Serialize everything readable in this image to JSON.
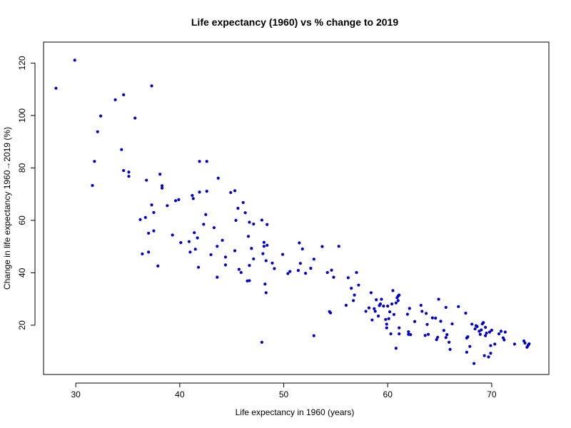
{
  "chart_data": {
    "type": "scatter",
    "title": "Life expectancy (1960) vs % change to 2019",
    "xlabel": "Life expectancy in 1960 (years)",
    "ylabel": "Change in life expectancy 1960→2019 (%)",
    "xlim": [
      26.9,
      75.5
    ],
    "ylim": [
      1.2,
      128
    ],
    "xticks": [
      "30",
      "40",
      "50",
      "60",
      "70"
    ],
    "yticks": [
      "20",
      "40",
      "60",
      "80",
      "100",
      "120"
    ],
    "grid": false,
    "marker_color": "#0000CD",
    "points": [
      [
        28.1,
        110.4
      ],
      [
        29.9,
        121.1
      ],
      [
        31.6,
        73.3
      ],
      [
        31.8,
        82.5
      ],
      [
        32.1,
        93.8
      ],
      [
        32.4,
        99.8
      ],
      [
        33.8,
        106.0
      ],
      [
        34.4,
        87.0
      ],
      [
        34.6,
        107.9
      ],
      [
        34.6,
        79.0
      ],
      [
        35.1,
        76.8
      ],
      [
        35.1,
        78.4
      ],
      [
        35.7,
        99.0
      ],
      [
        37.3,
        111.3
      ],
      [
        36.2,
        60.3
      ],
      [
        36.4,
        47.2
      ],
      [
        36.7,
        61.1
      ],
      [
        36.8,
        75.3
      ],
      [
        37.0,
        55.1
      ],
      [
        37.0,
        47.9
      ],
      [
        37.3,
        65.9
      ],
      [
        37.5,
        56.0
      ],
      [
        37.5,
        63.0
      ],
      [
        37.9,
        42.6
      ],
      [
        38.1,
        77.6
      ],
      [
        38.3,
        73.2
      ],
      [
        38.3,
        72.3
      ],
      [
        38.8,
        65.6
      ],
      [
        39.3,
        54.4
      ],
      [
        39.6,
        67.5
      ],
      [
        39.9,
        67.9
      ],
      [
        40.1,
        51.5
      ],
      [
        40.9,
        51.9
      ],
      [
        41.0,
        47.9
      ],
      [
        41.2,
        69.5
      ],
      [
        41.3,
        68.3
      ],
      [
        41.4,
        55.3
      ],
      [
        41.5,
        49.0
      ],
      [
        41.7,
        53.3
      ],
      [
        41.8,
        42.1
      ],
      [
        41.9,
        70.8
      ],
      [
        41.9,
        82.5
      ],
      [
        42.3,
        58.5
      ],
      [
        42.5,
        62.2
      ],
      [
        42.6,
        71.1
      ],
      [
        42.6,
        82.5
      ],
      [
        43.0,
        46.9
      ],
      [
        43.3,
        57.2
      ],
      [
        43.6,
        50.1
      ],
      [
        43.6,
        38.3
      ],
      [
        43.7,
        76.1
      ],
      [
        44.1,
        52.4
      ],
      [
        44.4,
        43.0
      ],
      [
        44.4,
        46.0
      ],
      [
        44.9,
        70.6
      ],
      [
        45.3,
        71.3
      ],
      [
        45.3,
        48.4
      ],
      [
        45.4,
        60.0
      ],
      [
        45.6,
        64.6
      ],
      [
        45.7,
        41.3
      ],
      [
        45.9,
        40.1
      ],
      [
        46.1,
        66.8
      ],
      [
        46.3,
        62.9
      ],
      [
        46.5,
        36.9
      ],
      [
        46.6,
        53.9
      ],
      [
        46.7,
        59.3
      ],
      [
        46.7,
        42.8
      ],
      [
        46.7,
        37.0
      ],
      [
        46.9,
        49.3
      ],
      [
        47.1,
        45.3
      ],
      [
        47.1,
        58.6
      ],
      [
        47.9,
        13.5
      ],
      [
        47.9,
        60.1
      ],
      [
        48.0,
        47.3
      ],
      [
        48.1,
        51.6
      ],
      [
        48.1,
        50.1
      ],
      [
        48.2,
        35.7
      ],
      [
        48.3,
        32.4
      ],
      [
        48.3,
        44.6
      ],
      [
        48.4,
        58.4
      ],
      [
        48.4,
        50.5
      ],
      [
        48.9,
        43.7
      ],
      [
        49.1,
        41.6
      ],
      [
        49.9,
        47.0
      ],
      [
        50.4,
        39.7
      ],
      [
        50.6,
        40.5
      ],
      [
        51.4,
        40.9
      ],
      [
        51.5,
        51.4
      ],
      [
        51.6,
        43.6
      ],
      [
        51.8,
        49.1
      ],
      [
        52.1,
        39.8
      ],
      [
        52.6,
        41.7
      ],
      [
        52.9,
        45.2
      ],
      [
        52.9,
        16.0
      ],
      [
        53.7,
        50.0
      ],
      [
        54.2,
        40.1
      ],
      [
        54.4,
        25.2
      ],
      [
        54.5,
        24.7
      ],
      [
        54.6,
        41.0
      ],
      [
        54.8,
        38.3
      ],
      [
        55.3,
        50.1
      ],
      [
        56.0,
        27.6
      ],
      [
        56.2,
        38.1
      ],
      [
        56.5,
        34.1
      ],
      [
        56.7,
        29.4
      ],
      [
        56.8,
        31.5
      ],
      [
        57.0,
        40.1
      ],
      [
        57.2,
        35.3
      ],
      [
        57.9,
        25.3
      ],
      [
        58.2,
        26.6
      ],
      [
        58.4,
        32.4
      ],
      [
        58.5,
        22.0
      ],
      [
        58.7,
        26.3
      ],
      [
        58.8,
        25.3
      ],
      [
        58.9,
        29.7
      ],
      [
        59.1,
        23.5
      ],
      [
        59.2,
        27.5
      ],
      [
        59.3,
        28.1
      ],
      [
        59.4,
        29.9
      ],
      [
        59.6,
        27.3
      ],
      [
        59.8,
        22.2
      ],
      [
        59.9,
        20.4
      ],
      [
        59.9,
        19.0
      ],
      [
        60.0,
        27.3
      ],
      [
        60.1,
        22.5
      ],
      [
        60.2,
        25.1
      ],
      [
        60.3,
        16.7
      ],
      [
        60.4,
        28.1
      ],
      [
        60.5,
        33.2
      ],
      [
        60.6,
        24.1
      ],
      [
        60.8,
        28.5
      ],
      [
        60.8,
        11.2
      ],
      [
        60.9,
        30.5
      ],
      [
        61.0,
        29.4
      ],
      [
        61.0,
        31.1
      ],
      [
        61.1,
        31.5
      ],
      [
        61.1,
        19.0
      ],
      [
        61.1,
        16.7
      ],
      [
        61.9,
        24.2
      ],
      [
        62.0,
        17.5
      ],
      [
        62.0,
        16.5
      ],
      [
        62.1,
        26.4
      ],
      [
        62.2,
        16.4
      ],
      [
        62.6,
        21.4
      ],
      [
        63.2,
        27.6
      ],
      [
        63.3,
        25.3
      ],
      [
        63.6,
        16.1
      ],
      [
        63.7,
        24.5
      ],
      [
        63.8,
        20.3
      ],
      [
        63.9,
        16.5
      ],
      [
        64.3,
        22.8
      ],
      [
        64.6,
        22.7
      ],
      [
        64.7,
        14.5
      ],
      [
        64.8,
        15.4
      ],
      [
        64.9,
        29.9
      ],
      [
        65.1,
        21.5
      ],
      [
        65.4,
        18.0
      ],
      [
        65.6,
        26.8
      ],
      [
        65.6,
        15.3
      ],
      [
        65.7,
        16.4
      ],
      [
        65.9,
        13.5
      ],
      [
        66.0,
        10.8
      ],
      [
        66.2,
        20.5
      ],
      [
        66.8,
        27.1
      ],
      [
        67.5,
        24.6
      ],
      [
        67.6,
        9.7
      ],
      [
        67.6,
        15.1
      ],
      [
        67.7,
        15.6
      ],
      [
        67.9,
        11.9
      ],
      [
        68.1,
        20.4
      ],
      [
        68.3,
        5.4
      ],
      [
        68.4,
        18.6
      ],
      [
        68.5,
        19.8
      ],
      [
        68.6,
        19.5
      ],
      [
        68.8,
        17.7
      ],
      [
        68.9,
        16.5
      ],
      [
        69.0,
        18.2
      ],
      [
        69.1,
        20.5
      ],
      [
        69.2,
        21.0
      ],
      [
        69.3,
        8.4
      ],
      [
        69.4,
        16.0
      ],
      [
        69.4,
        19.2
      ],
      [
        69.5,
        17.0
      ],
      [
        69.7,
        7.9
      ],
      [
        69.8,
        17.4
      ],
      [
        69.9,
        12.2
      ],
      [
        69.9,
        9.3
      ],
      [
        70.0,
        18.1
      ],
      [
        70.3,
        12.8
      ],
      [
        70.7,
        16.7
      ],
      [
        70.9,
        17.7
      ],
      [
        71.1,
        15.2
      ],
      [
        71.2,
        14.4
      ],
      [
        71.3,
        17.4
      ],
      [
        72.2,
        12.8
      ],
      [
        73.1,
        14.0
      ],
      [
        73.2,
        13.2
      ],
      [
        73.4,
        11.6
      ],
      [
        73.5,
        12.3
      ],
      [
        73.6,
        12.9
      ]
    ]
  }
}
